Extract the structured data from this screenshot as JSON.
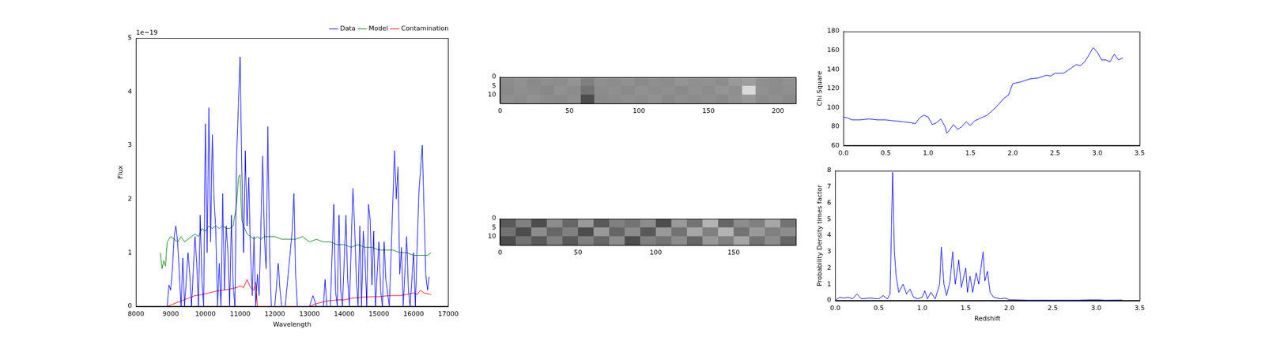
{
  "chart_data": [
    {
      "type": "line",
      "xlabel": "Wavelength",
      "ylabel": "Flux",
      "annotation": "1e−19",
      "xlim": [
        8000,
        17000
      ],
      "xticks": [
        8000,
        9000,
        10000,
        11000,
        12000,
        13000,
        14000,
        15000,
        16000,
        17000
      ],
      "ylim": [
        0,
        5e-19
      ],
      "yticks": [
        0,
        {
          "value": 1e-19,
          "label": "1"
        },
        {
          "value": 2e-19,
          "label": "2"
        },
        {
          "value": 3e-19,
          "label": "3"
        },
        {
          "value": 4e-19,
          "label": "4"
        },
        {
          "value": 5e-19,
          "label": "5"
        }
      ],
      "grid": false,
      "legend": "upper right",
      "series": [
        {
          "name": "Data",
          "color": "#0000ff",
          "x": [
            8900,
            8950,
            9000,
            9050,
            9100,
            9150,
            9200,
            9300,
            9350,
            9400,
            9500,
            9550,
            9600,
            9700,
            9750,
            9800,
            9850,
            9900,
            9950,
            10000,
            10050,
            10100,
            10150,
            10200,
            10250,
            10300,
            10350,
            10400,
            10450,
            10500,
            10550,
            10600,
            10650,
            10700,
            10750,
            10800,
            10850,
            10900,
            11000,
            11050,
            11100,
            11150,
            11200,
            11250,
            11300,
            11350,
            11400,
            11450,
            11500,
            11550,
            11650,
            11700,
            11750,
            11800,
            11850,
            11900,
            12000,
            12100,
            12150,
            12200,
            12300,
            12400,
            12500,
            12550,
            12600,
            12650,
            12800,
            13000,
            13100,
            13200,
            13300,
            13400,
            13450,
            13500,
            13600,
            13700,
            13750,
            13800,
            13850,
            13900,
            13950,
            14050,
            14100,
            14150,
            14250,
            14300,
            14350,
            14400,
            14450,
            14500,
            14550,
            14600,
            14650,
            14700,
            14750,
            14800,
            14850,
            14900,
            15000,
            15050,
            15100,
            15150,
            15200,
            15300,
            15450,
            15500,
            15550,
            15600,
            15650,
            15700,
            15800,
            15850,
            15900,
            16000,
            16050,
            16150,
            16250,
            16350,
            16400,
            16450
          ],
          "values": [
            0,
            4e-20,
            3e-20,
            7e-20,
            1.3e-19,
            1.5e-19,
            1.2e-19,
            0,
            9e-20,
            0,
            1e-19,
            6e-20,
            0,
            1.3e-19,
            8e-20,
            0,
            1.7e-19,
            5e-20,
            0,
            3.4e-19,
            1e-19,
            3.7e-19,
            1.2e-19,
            3.2e-19,
            2e-19,
            1.4e-19,
            0,
            8e-20,
            0,
            2.1e-19,
            3e-20,
            1.5e-19,
            1e-19,
            0,
            1.7e-19,
            4e-20,
            0,
            2.8e-19,
            4.65e-19,
            2.5e-19,
            1e-19,
            2.9e-19,
            1.5e-19,
            2.4e-19,
            1e-19,
            2e-20,
            1.3e-19,
            0,
            6e-20,
            2e-20,
            2.8e-19,
            1.3e-19,
            7e-20,
            3.35e-19,
            1e-19,
            0,
            0,
            8e-20,
            3e-20,
            0,
            0,
            7e-20,
            1.4e-19,
            2.1e-19,
            6e-20,
            0,
            0,
            0,
            2e-20,
            0,
            0,
            0,
            5e-20,
            0,
            0,
            1.9e-19,
            3e-20,
            0,
            1.7e-19,
            3e-20,
            0,
            1.7e-19,
            5e-20,
            0,
            2.2e-19,
            1.5e-19,
            5e-20,
            0,
            1.5e-19,
            0,
            1.4e-19,
            9e-20,
            0,
            1.9e-19,
            1.6e-19,
            4e-20,
            1.4e-19,
            0,
            1.2e-19,
            3e-20,
            0,
            1.2e-19,
            5e-20,
            0,
            2.9e-19,
            2e-19,
            2.6e-19,
            6e-20,
            1.1e-19,
            0,
            1.3e-19,
            3e-20,
            0,
            1e-19,
            0,
            2.1e-19,
            3e-19,
            6e-20,
            3e-20,
            5.5e-20
          ]
        },
        {
          "name": "Model",
          "color": "#008000",
          "x": [
            8700,
            8750,
            8800,
            8850,
            8900,
            9000,
            9100,
            9200,
            9300,
            9400,
            9500,
            9600,
            9700,
            9800,
            9900,
            10000,
            10100,
            10200,
            10300,
            10400,
            10500,
            10600,
            10700,
            10800,
            10900,
            10950,
            11000,
            11050,
            11100,
            11200,
            11300,
            11400,
            11500,
            11600,
            11700,
            11800,
            12000,
            12200,
            12400,
            12600,
            12800,
            13000,
            13200,
            13400,
            13600,
            13800,
            14000,
            14200,
            14400,
            14600,
            14800,
            15000,
            15200,
            15400,
            15600,
            15800,
            16000,
            16200,
            16400,
            16500
          ],
          "values": [
            1e-19,
            7e-20,
            8.5e-20,
            7.5e-20,
            1.2e-19,
            1.3e-19,
            1.25e-19,
            1.2e-19,
            1.3e-19,
            1.2e-19,
            1.25e-19,
            1.3e-19,
            1.35e-19,
            1.3e-19,
            1.45e-19,
            1.4e-19,
            1.5e-19,
            1.45e-19,
            1.5e-19,
            1.45e-19,
            1.5e-19,
            1.45e-19,
            1.45e-19,
            1.5e-19,
            1.9e-19,
            2.4e-19,
            2.45e-19,
            1.6e-19,
            1.5e-19,
            1.35e-19,
            1.3e-19,
            1.25e-19,
            1.3e-19,
            1.25e-19,
            1.3e-19,
            1.3e-19,
            1.3e-19,
            1.25e-19,
            1.25e-19,
            1.25e-19,
            1.3e-19,
            1.2e-19,
            1.25e-19,
            1.2e-19,
            1.2e-19,
            1.15e-19,
            1.15e-19,
            1.1e-19,
            1.15e-19,
            1.1e-19,
            1.1e-19,
            1.05e-19,
            1.05e-19,
            1.05e-19,
            1e-19,
            1e-19,
            9.5e-20,
            9.5e-20,
            9.5e-20,
            1e-19
          ]
        },
        {
          "name": "Contamination",
          "color": "#ff0000",
          "x": [
            8900,
            9100,
            9300,
            9500,
            9700,
            9900,
            10100,
            10300,
            10500,
            10700,
            10900,
            11000,
            11100,
            11200,
            11300,
            11400,
            11450,
            11500,
            11800,
            12000,
            12500,
            13000,
            13200,
            13500,
            13800,
            14000,
            14200,
            14500,
            14800,
            15000,
            15300,
            15600,
            15800,
            16000,
            16100,
            16200,
            16300,
            16500
          ],
          "values": [
            0,
            5e-21,
            1e-20,
            1.5e-20,
            2e-20,
            2.2e-20,
            2.5e-20,
            2.8e-20,
            3e-20,
            3.2e-20,
            3.5e-20,
            3.8e-20,
            3.5e-20,
            5e-20,
            3.5e-20,
            3e-20,
            4.5e-20,
            0,
            0,
            0,
            0,
            0,
            5e-21,
            1e-20,
            1.2e-20,
            1.2e-20,
            1.5e-20,
            1.7e-20,
            1.8e-20,
            1.8e-20,
            2e-20,
            2e-20,
            2.2e-20,
            2.5e-20,
            2.2e-20,
            3e-20,
            2.5e-20,
            2.2e-20
          ]
        }
      ]
    },
    {
      "type": "heatmap",
      "xlim": [
        0,
        213
      ],
      "xticks": [
        0,
        50,
        100,
        150,
        200
      ],
      "ylim": [
        0,
        15
      ],
      "yticks": [
        0,
        5,
        10
      ],
      "grid": false,
      "zlim": [
        0,
        1
      ],
      "cells": [
        [
          0.55,
          0.57,
          0.54,
          0.56,
          0.55,
          0.58,
          0.5,
          0.56,
          0.55,
          0.57,
          0.54,
          0.56,
          0.55,
          0.58,
          0.56,
          0.57,
          0.55,
          0.6,
          0.62,
          0.56,
          0.55,
          0.57
        ],
        [
          0.54,
          0.56,
          0.55,
          0.53,
          0.57,
          0.55,
          0.45,
          0.55,
          0.56,
          0.54,
          0.57,
          0.55,
          0.56,
          0.54,
          0.57,
          0.55,
          0.58,
          0.56,
          0.85,
          0.57,
          0.55,
          0.56
        ],
        [
          0.56,
          0.55,
          0.57,
          0.55,
          0.54,
          0.56,
          0.3,
          0.54,
          0.55,
          0.56,
          0.55,
          0.57,
          0.54,
          0.56,
          0.55,
          0.56,
          0.54,
          0.57,
          0.6,
          0.55,
          0.56,
          0.54
        ]
      ]
    },
    {
      "type": "heatmap",
      "xlim": [
        0,
        190
      ],
      "xticks": [
        0,
        50,
        100,
        150
      ],
      "ylim": [
        0,
        15
      ],
      "yticks": [
        0,
        5,
        10
      ],
      "grid": false,
      "zlim": [
        0,
        1
      ],
      "cells": [
        [
          0.35,
          0.5,
          0.3,
          0.55,
          0.4,
          0.6,
          0.35,
          0.5,
          0.45,
          0.55,
          0.3,
          0.6,
          0.45,
          0.7,
          0.4,
          0.55,
          0.5,
          0.65,
          0.45
        ],
        [
          0.45,
          0.3,
          0.55,
          0.4,
          0.5,
          0.3,
          0.6,
          0.4,
          0.55,
          0.35,
          0.6,
          0.45,
          0.65,
          0.5,
          0.7,
          0.45,
          0.6,
          0.5,
          0.55
        ],
        [
          0.3,
          0.45,
          0.35,
          0.5,
          0.35,
          0.5,
          0.4,
          0.55,
          0.3,
          0.5,
          0.45,
          0.55,
          0.4,
          0.6,
          0.5,
          0.65,
          0.45,
          0.55,
          0.4
        ]
      ]
    },
    {
      "type": "line",
      "ylabel": "Chi Square",
      "grid": false,
      "xlim": [
        0,
        3.5
      ],
      "xticks": [
        {
          "value": 0,
          "label": "0.0"
        },
        0.5,
        {
          "value": 1,
          "label": "1.0"
        },
        1.5,
        {
          "value": 2,
          "label": "2.0"
        },
        2.5,
        {
          "value": 3,
          "label": "3.0"
        },
        3.5
      ],
      "ylim": [
        60,
        180
      ],
      "yticks": [
        60,
        80,
        100,
        120,
        140,
        160,
        180
      ],
      "series": [
        {
          "name": "Chi Square",
          "color": "#0000ff",
          "x": [
            0,
            0.05,
            0.1,
            0.2,
            0.3,
            0.4,
            0.5,
            0.6,
            0.7,
            0.8,
            0.85,
            0.9,
            0.95,
            1.0,
            1.05,
            1.1,
            1.15,
            1.2,
            1.22,
            1.25,
            1.3,
            1.35,
            1.4,
            1.45,
            1.5,
            1.55,
            1.6,
            1.7,
            1.8,
            1.9,
            1.95,
            2.0,
            2.1,
            2.2,
            2.3,
            2.4,
            2.45,
            2.5,
            2.6,
            2.7,
            2.75,
            2.8,
            2.85,
            2.9,
            2.95,
            3.0,
            3.05,
            3.1,
            3.15,
            3.2,
            3.25,
            3.3
          ],
          "values": [
            90,
            89,
            87,
            87,
            88,
            87,
            87,
            86,
            85,
            84,
            83,
            89,
            92,
            90,
            82,
            84,
            88,
            80,
            73,
            76,
            82,
            77,
            80,
            85,
            81,
            86,
            88,
            92,
            100,
            110,
            113,
            125,
            127,
            130,
            131,
            134,
            133,
            136,
            136,
            142,
            145,
            144,
            148,
            155,
            163,
            158,
            150,
            150,
            148,
            156,
            150,
            152
          ]
        }
      ]
    },
    {
      "type": "line",
      "xlabel": "Redshift",
      "ylabel": "Probability Density times factor",
      "grid": false,
      "xlim": [
        0,
        3.5
      ],
      "xticks": [
        {
          "value": 0,
          "label": "0.0"
        },
        0.5,
        {
          "value": 1,
          "label": "1.0"
        },
        1.5,
        {
          "value": 2,
          "label": "2.0"
        },
        2.5,
        {
          "value": 3,
          "label": "3.0"
        },
        3.5
      ],
      "ylim": [
        0,
        8
      ],
      "yticks": [
        0,
        1,
        2,
        3,
        4,
        5,
        6,
        7,
        8
      ],
      "series": [
        {
          "name": "Probability Density times factor",
          "color": "#0000ff",
          "x": [
            0,
            0.05,
            0.1,
            0.15,
            0.2,
            0.25,
            0.3,
            0.4,
            0.5,
            0.55,
            0.6,
            0.63,
            0.66,
            0.68,
            0.7,
            0.73,
            0.78,
            0.82,
            0.86,
            0.9,
            0.95,
            1.0,
            1.03,
            1.06,
            1.1,
            1.15,
            1.2,
            1.22,
            1.25,
            1.28,
            1.32,
            1.35,
            1.38,
            1.42,
            1.45,
            1.5,
            1.52,
            1.55,
            1.58,
            1.62,
            1.65,
            1.7,
            1.72,
            1.75,
            1.78,
            1.82,
            1.9,
            1.95,
            2.0,
            2.2,
            2.5,
            2.8,
            3.0,
            3.1,
            3.3
          ],
          "values": [
            0,
            0.2,
            0.15,
            0.2,
            0.1,
            0.4,
            0.1,
            0.15,
            0.1,
            0.3,
            0.1,
            0.4,
            7.9,
            3,
            1.5,
            0.5,
            1.0,
            0.4,
            0.7,
            0.2,
            0.1,
            0.2,
            0.6,
            0.1,
            0.5,
            0.1,
            1.0,
            3.3,
            1.0,
            0.3,
            1.2,
            3.0,
            1.0,
            2.5,
            0.8,
            2.0,
            0.5,
            1.5,
            0.5,
            1.7,
            1.0,
            3.0,
            1.2,
            1.8,
            0.5,
            0.2,
            0.1,
            0.15,
            0.05,
            0.02,
            0.02,
            0.02,
            0.05,
            0.02,
            0.03
          ]
        }
      ]
    }
  ]
}
